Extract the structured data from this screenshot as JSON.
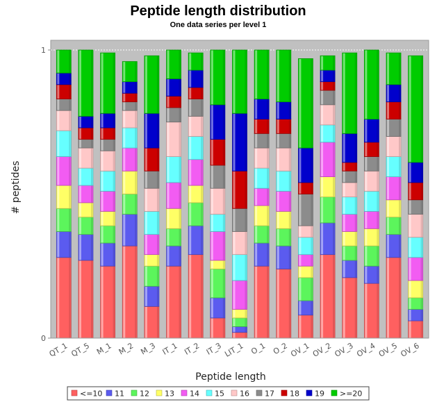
{
  "chart_data": {
    "type": "bar",
    "stacked": true,
    "normalized": true,
    "title": "Peptide length distribution",
    "subtitle": "One data series per level 1",
    "xlabel": "Peptide length",
    "ylabel": "# peptides",
    "ylim": [
      0,
      1
    ],
    "yticks": [
      "0",
      "1"
    ],
    "grid": true,
    "legend_position": "bottom",
    "categories": [
      "QT_1",
      "QT_5",
      "M_1",
      "M_2",
      "M_3",
      "IT_1",
      "IT_2",
      "IT_3",
      "LIT_1",
      "O_1",
      "O_2",
      "OV_1",
      "OV_2",
      "OV_3",
      "OV_4",
      "OV_5",
      "OV_6"
    ],
    "series": [
      {
        "name": "<=10",
        "color": "#ff6060",
        "values": [
          0.28,
          0.27,
          0.25,
          0.32,
          0.11,
          0.25,
          0.29,
          0.07,
          0.02,
          0.25,
          0.24,
          0.08,
          0.29,
          0.21,
          0.19,
          0.28,
          0.06
        ]
      },
      {
        "name": "11",
        "color": "#5b5bef",
        "values": [
          0.09,
          0.09,
          0.08,
          0.11,
          0.07,
          0.07,
          0.1,
          0.07,
          0.02,
          0.08,
          0.08,
          0.05,
          0.11,
          0.06,
          0.06,
          0.08,
          0.04
        ]
      },
      {
        "name": "12",
        "color": "#5cf55c",
        "values": [
          0.08,
          0.06,
          0.06,
          0.07,
          0.07,
          0.06,
          0.08,
          0.1,
          0.03,
          0.06,
          0.06,
          0.08,
          0.09,
          0.05,
          0.07,
          0.06,
          0.04
        ]
      },
      {
        "name": "13",
        "color": "#ffff66",
        "values": [
          0.08,
          0.05,
          0.05,
          0.08,
          0.04,
          0.07,
          0.06,
          0.03,
          0.03,
          0.07,
          0.06,
          0.04,
          0.07,
          0.05,
          0.06,
          0.06,
          0.06
        ]
      },
      {
        "name": "14",
        "color": "#f25cf2",
        "values": [
          0.1,
          0.06,
          0.07,
          0.08,
          0.07,
          0.09,
          0.09,
          0.1,
          0.1,
          0.06,
          0.07,
          0.04,
          0.12,
          0.06,
          0.06,
          0.08,
          0.08
        ]
      },
      {
        "name": "15",
        "color": "#66ffff",
        "values": [
          0.09,
          0.06,
          0.07,
          0.07,
          0.08,
          0.09,
          0.08,
          0.06,
          0.09,
          0.07,
          0.07,
          0.06,
          0.06,
          0.06,
          0.07,
          0.07,
          0.07
        ]
      },
      {
        "name": "16",
        "color": "#ffc8c8",
        "values": [
          0.07,
          0.07,
          0.07,
          0.06,
          0.08,
          0.12,
          0.07,
          0.09,
          0.08,
          0.07,
          0.08,
          0.04,
          0.07,
          0.05,
          0.07,
          0.07,
          0.08
        ]
      },
      {
        "name": "17",
        "color": "#8c8c8c",
        "values": [
          0.04,
          0.03,
          0.04,
          0.03,
          0.06,
          0.05,
          0.06,
          0.08,
          0.08,
          0.05,
          0.05,
          0.11,
          0.05,
          0.04,
          0.05,
          0.06,
          0.05
        ]
      },
      {
        "name": "18",
        "color": "#cc0000",
        "values": [
          0.05,
          0.04,
          0.04,
          0.03,
          0.08,
          0.04,
          0.04,
          0.09,
          0.13,
          0.05,
          0.05,
          0.04,
          0.03,
          0.03,
          0.05,
          0.06,
          0.06
        ]
      },
      {
        "name": "19",
        "color": "#0000cc",
        "values": [
          0.04,
          0.04,
          0.05,
          0.04,
          0.12,
          0.06,
          0.06,
          0.12,
          0.2,
          0.07,
          0.06,
          0.12,
          0.04,
          0.1,
          0.08,
          0.06,
          0.07
        ]
      },
      {
        "name": ">=20",
        "color": "#00cc00",
        "values": [
          0.08,
          0.23,
          0.21,
          0.07,
          0.2,
          0.1,
          0.06,
          0.19,
          0.22,
          0.17,
          0.18,
          0.31,
          0.05,
          0.28,
          0.24,
          0.11,
          0.37
        ]
      }
    ]
  }
}
